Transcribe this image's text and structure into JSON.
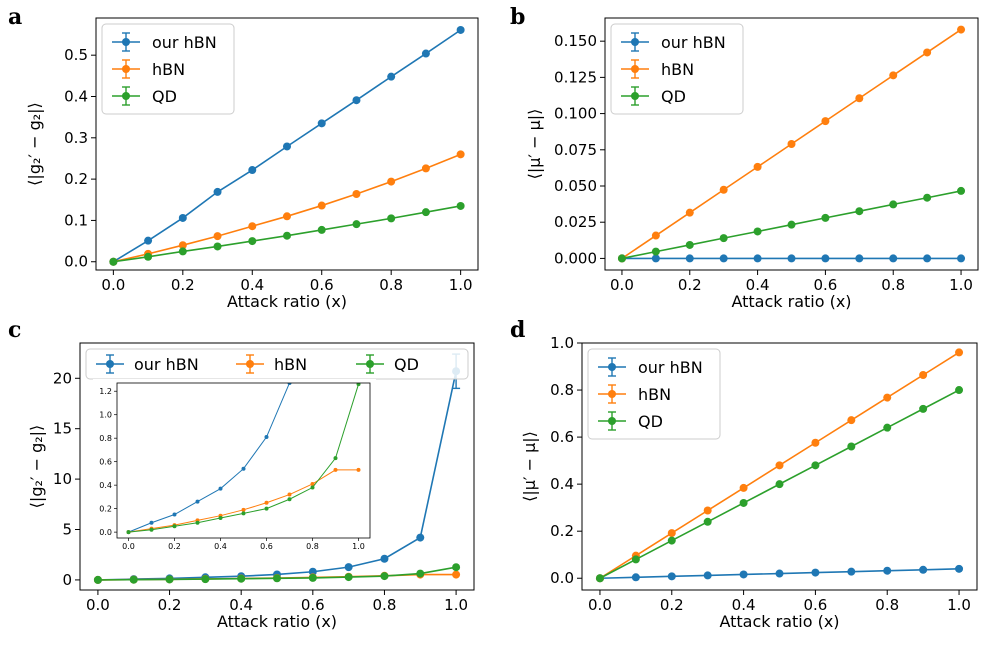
{
  "colors": {
    "our_hBN": "#1f77b4",
    "hBN": "#ff7f0e",
    "QD": "#2ca02c"
  },
  "chart_data": [
    {
      "id": "a",
      "panel_label": "a",
      "type": "line",
      "xlabel": "Attack ratio (x)",
      "ylabel": "⟨|g₂′ − g₂|⟩",
      "xlim": [
        -0.05,
        1.05
      ],
      "ylim": [
        -0.02,
        0.59
      ],
      "xticks": [
        0.0,
        0.2,
        0.4,
        0.6,
        0.8,
        1.0
      ],
      "xtick_labels": [
        "0.0",
        "0.2",
        "0.4",
        "0.6",
        "0.8",
        "1.0"
      ],
      "yticks": [
        0.0,
        0.1,
        0.2,
        0.3,
        0.4,
        0.5
      ],
      "ytick_labels": [
        "0.0",
        "0.1",
        "0.2",
        "0.3",
        "0.4",
        "0.5"
      ],
      "legend": "upper-left",
      "x": [
        0.0,
        0.1,
        0.2,
        0.3,
        0.4,
        0.5,
        0.6,
        0.7,
        0.8,
        0.9,
        1.0
      ],
      "series": [
        {
          "name": "our hBN",
          "color": "#1f77b4",
          "values": [
            0.0,
            0.051,
            0.106,
            0.169,
            0.222,
            0.279,
            0.335,
            0.391,
            0.448,
            0.504,
            0.561
          ]
        },
        {
          "name": "hBN",
          "color": "#ff7f0e",
          "values": [
            0.0,
            0.019,
            0.04,
            0.062,
            0.086,
            0.11,
            0.136,
            0.164,
            0.194,
            0.226,
            0.26
          ]
        },
        {
          "name": "QD",
          "color": "#2ca02c",
          "values": [
            0.0,
            0.012,
            0.025,
            0.037,
            0.05,
            0.063,
            0.077,
            0.091,
            0.105,
            0.12,
            0.135
          ]
        }
      ]
    },
    {
      "id": "b",
      "panel_label": "b",
      "type": "line",
      "xlabel": "Attack ratio (x)",
      "ylabel": "⟨|μ′ − μ|⟩",
      "xlim": [
        -0.05,
        1.05
      ],
      "ylim": [
        -0.008,
        0.166
      ],
      "xticks": [
        0.0,
        0.2,
        0.4,
        0.6,
        0.8,
        1.0
      ],
      "xtick_labels": [
        "0.0",
        "0.2",
        "0.4",
        "0.6",
        "0.8",
        "1.0"
      ],
      "yticks": [
        0.0,
        0.025,
        0.05,
        0.075,
        0.1,
        0.125,
        0.15
      ],
      "ytick_labels": [
        "0.000",
        "0.025",
        "0.050",
        "0.075",
        "0.100",
        "0.125",
        "0.150"
      ],
      "legend": "upper-left",
      "x": [
        0.0,
        0.1,
        0.2,
        0.3,
        0.4,
        0.5,
        0.6,
        0.7,
        0.8,
        0.9,
        1.0
      ],
      "series": [
        {
          "name": "our hBN",
          "color": "#1f77b4",
          "values": [
            0.0,
            0.0,
            0.0,
            0.0,
            0.0,
            0.0,
            0.0,
            0.0,
            0.0,
            0.0,
            0.0
          ]
        },
        {
          "name": "hBN",
          "color": "#ff7f0e",
          "values": [
            0.0,
            0.0158,
            0.0316,
            0.0474,
            0.0632,
            0.079,
            0.0948,
            0.1106,
            0.1264,
            0.1422,
            0.158
          ]
        },
        {
          "name": "QD",
          "color": "#2ca02c",
          "values": [
            0.0,
            0.0047,
            0.0093,
            0.014,
            0.0186,
            0.0233,
            0.028,
            0.0326,
            0.0373,
            0.0419,
            0.0466
          ]
        }
      ]
    },
    {
      "id": "c",
      "panel_label": "c",
      "type": "line",
      "xlabel": "Attack ratio (x)",
      "ylabel": "⟨|g₂′ − g₂|⟩",
      "xlim": [
        -0.05,
        1.05
      ],
      "ylim": [
        -1.0,
        23.5
      ],
      "xticks": [
        0.0,
        0.2,
        0.4,
        0.6,
        0.8,
        1.0
      ],
      "xtick_labels": [
        "0.0",
        "0.2",
        "0.4",
        "0.6",
        "0.8",
        "1.0"
      ],
      "yticks": [
        0,
        5,
        10,
        15,
        20
      ],
      "ytick_labels": [
        "0",
        "5",
        "10",
        "15",
        "20"
      ],
      "legend": "top, horizontal",
      "x": [
        0.0,
        0.1,
        0.2,
        0.3,
        0.4,
        0.5,
        0.6,
        0.7,
        0.8,
        0.9,
        1.0
      ],
      "series": [
        {
          "name": "our hBN",
          "color": "#1f77b4",
          "values": [
            0.0,
            0.08,
            0.15,
            0.26,
            0.37,
            0.54,
            0.81,
            1.27,
            2.1,
            4.2,
            20.7
          ],
          "errors": [
            0,
            0,
            0,
            0,
            0,
            0,
            0,
            0,
            0,
            0,
            1.7
          ]
        },
        {
          "name": "hBN",
          "color": "#ff7f0e",
          "values": [
            0.0,
            0.03,
            0.06,
            0.1,
            0.14,
            0.19,
            0.25,
            0.32,
            0.41,
            0.53,
            0.53
          ]
        },
        {
          "name": "QD",
          "color": "#2ca02c",
          "values": [
            0.0,
            0.02,
            0.05,
            0.08,
            0.12,
            0.16,
            0.2,
            0.28,
            0.38,
            0.63,
            1.26
          ]
        }
      ],
      "inset": {
        "xlim": [
          -0.05,
          1.05
        ],
        "ylim": [
          -0.05,
          1.27
        ],
        "xticks": [
          0.0,
          0.2,
          0.4,
          0.6,
          0.8,
          1.0
        ],
        "xtick_labels": [
          "0.0",
          "0.2",
          "0.4",
          "0.6",
          "0.8",
          "1.0"
        ],
        "yticks": [
          0.0,
          0.2,
          0.4,
          0.6,
          0.8,
          1.0,
          1.2
        ],
        "ytick_labels": [
          "0.0",
          "0.2",
          "0.4",
          "0.6",
          "0.8",
          "1.0",
          "1.2"
        ]
      }
    },
    {
      "id": "d",
      "panel_label": "d",
      "type": "line",
      "xlabel": "Attack ratio (x)",
      "ylabel": "⟨|μ′ − μ|⟩",
      "xlim": [
        -0.05,
        1.05
      ],
      "ylim": [
        -0.05,
        1.0
      ],
      "xticks": [
        0.0,
        0.2,
        0.4,
        0.6,
        0.8,
        1.0
      ],
      "xtick_labels": [
        "0.0",
        "0.2",
        "0.4",
        "0.6",
        "0.8",
        "1.0"
      ],
      "yticks": [
        0.0,
        0.2,
        0.4,
        0.6,
        0.8,
        1.0
      ],
      "ytick_labels": [
        "0.0",
        "0.2",
        "0.4",
        "0.6",
        "0.8",
        "1.0"
      ],
      "legend": "upper-left",
      "x": [
        0.0,
        0.1,
        0.2,
        0.3,
        0.4,
        0.5,
        0.6,
        0.7,
        0.8,
        0.9,
        1.0
      ],
      "series": [
        {
          "name": "our hBN",
          "color": "#1f77b4",
          "values": [
            0.0,
            0.004,
            0.008,
            0.012,
            0.016,
            0.02,
            0.024,
            0.028,
            0.032,
            0.036,
            0.04
          ]
        },
        {
          "name": "hBN",
          "color": "#ff7f0e",
          "values": [
            0.0,
            0.096,
            0.192,
            0.288,
            0.384,
            0.48,
            0.576,
            0.672,
            0.768,
            0.864,
            0.96
          ]
        },
        {
          "name": "QD",
          "color": "#2ca02c",
          "values": [
            0.0,
            0.08,
            0.16,
            0.24,
            0.32,
            0.4,
            0.48,
            0.56,
            0.64,
            0.72,
            0.8
          ]
        }
      ]
    }
  ]
}
